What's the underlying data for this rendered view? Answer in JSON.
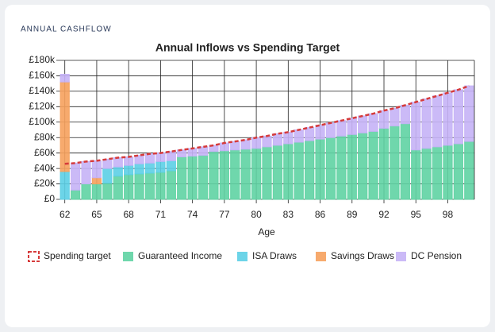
{
  "header": "ANNUAL CASHFLOW",
  "chart_data": {
    "type": "bar",
    "stacked": true,
    "title": "Annual Inflows vs Spending Target",
    "x_label": "Age",
    "categories": [
      "62",
      null,
      null,
      "65",
      null,
      null,
      "68",
      null,
      null,
      "71",
      null,
      null,
      "74",
      null,
      null,
      "77",
      null,
      null,
      "80",
      null,
      null,
      "83",
      null,
      null,
      "86",
      null,
      null,
      "89",
      null,
      null,
      "92",
      null,
      null,
      "95",
      null,
      null,
      "98",
      null,
      null
    ],
    "series": [
      {
        "name": "Spending target",
        "type": "line",
        "color": "#d63b3b",
        "values": [
          46,
          47,
          49,
          50,
          52,
          54,
          55,
          57,
          59,
          60,
          62,
          64,
          66,
          68,
          70,
          73,
          75,
          77,
          80,
          82,
          85,
          87,
          90,
          93,
          96,
          99,
          102,
          105,
          108,
          111,
          115,
          118,
          122,
          126,
          130,
          134,
          138,
          142,
          147
        ]
      },
      {
        "name": "Guaranteed Income",
        "type": "bar",
        "color": "#5fd3a3",
        "values": [
          0,
          12,
          20,
          20,
          21,
          30,
          32,
          33,
          34,
          35,
          37,
          55,
          56,
          57,
          62,
          63,
          64,
          65,
          66,
          68,
          70,
          72,
          74,
          76,
          78,
          80,
          82,
          84,
          86,
          88,
          92,
          95,
          98,
          64,
          66,
          68,
          70,
          72,
          75
        ]
      },
      {
        "name": "ISA Draws",
        "type": "bar",
        "color": "#5ccfe6",
        "values": [
          36,
          0,
          0,
          0,
          19,
          12,
          12,
          13,
          13,
          14,
          13,
          0,
          0,
          0,
          0,
          0,
          0,
          0,
          0,
          0,
          0,
          0,
          0,
          0,
          0,
          0,
          0,
          0,
          0,
          0,
          0,
          0,
          0,
          0,
          0,
          0,
          0,
          0,
          0
        ]
      },
      {
        "name": "Savings Draws",
        "type": "bar",
        "color": "#f6a15d",
        "values": [
          116,
          0,
          0,
          8,
          0,
          0,
          0,
          0,
          0,
          0,
          0,
          0,
          0,
          0,
          0,
          0,
          0,
          0,
          0,
          0,
          0,
          0,
          0,
          0,
          0,
          0,
          0,
          0,
          0,
          0,
          0,
          0,
          0,
          0,
          0,
          0,
          0,
          0,
          0
        ]
      },
      {
        "name": "DC Pension",
        "type": "bar",
        "color": "#c5b3f6",
        "values": [
          10,
          35,
          29,
          22,
          12,
          12,
          11,
          11,
          12,
          11,
          12,
          9,
          10,
          11,
          8,
          10,
          11,
          12,
          14,
          14,
          15,
          15,
          16,
          17,
          18,
          19,
          20,
          21,
          22,
          23,
          23,
          23,
          24,
          62,
          64,
          66,
          68,
          70,
          72
        ]
      }
    ],
    "ylim": [
      0,
      180
    ],
    "yticks": [
      {
        "value": 0,
        "label": "£0"
      },
      {
        "value": 20,
        "label": "£20k"
      },
      {
        "value": 40,
        "label": "£40k"
      },
      {
        "value": 60,
        "label": "£60k"
      },
      {
        "value": 80,
        "label": "£80k"
      },
      {
        "value": 100,
        "label": "£100k"
      },
      {
        "value": 120,
        "label": "£120k"
      },
      {
        "value": 140,
        "label": "£140k"
      },
      {
        "value": 160,
        "label": "£160k"
      },
      {
        "value": 180,
        "label": "£180k"
      }
    ],
    "grid": true
  }
}
